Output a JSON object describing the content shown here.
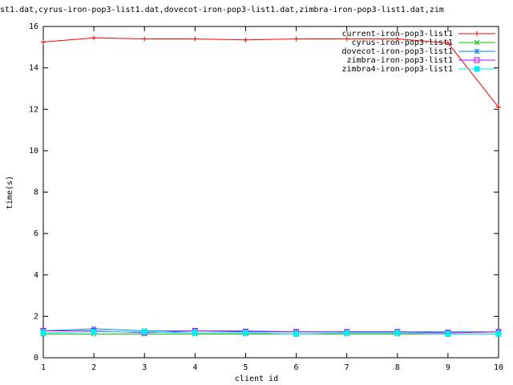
{
  "chart_data": {
    "type": "line",
    "title": "st1.dat,cyrus-iron-pop3-list1.dat,dovecot-iron-pop3-list1.dat,zimbra-iron-pop3-list1.dat,zim",
    "xlabel": "client id",
    "ylabel": "time(s)",
    "x": [
      1,
      2,
      3,
      4,
      5,
      6,
      7,
      8,
      9,
      10
    ],
    "xlim": [
      1,
      10
    ],
    "xticks": [
      1,
      2,
      3,
      4,
      5,
      6,
      7,
      8,
      9,
      10
    ],
    "ylim": [
      0,
      16
    ],
    "yticks": [
      0,
      2,
      4,
      6,
      8,
      10,
      12,
      14,
      16
    ],
    "legend": "top-right",
    "series": [
      {
        "name": "current-iron-pop3-list1",
        "color": "#ff0000",
        "values": [
          15.25,
          15.45,
          15.4,
          15.4,
          15.35,
          15.4,
          15.4,
          15.4,
          15.2,
          12.1
        ]
      },
      {
        "name": "cyrus-iron-pop3-list1",
        "color": "#00c000",
        "values": [
          1.15,
          1.15,
          1.15,
          1.15,
          1.15,
          1.15,
          1.15,
          1.15,
          1.15,
          1.15
        ]
      },
      {
        "name": "dovecot-iron-pop3-list1",
        "color": "#0080ff",
        "values": [
          1.3,
          1.4,
          1.3,
          1.3,
          1.3,
          1.25,
          1.25,
          1.25,
          1.25,
          1.25
        ]
      },
      {
        "name": "zimbra-iron-pop3-list1",
        "color": "#c000ff",
        "values": [
          1.3,
          1.3,
          1.2,
          1.3,
          1.25,
          1.25,
          1.25,
          1.25,
          1.2,
          1.25
        ]
      },
      {
        "name": "zimbra4-iron-pop3-list1",
        "color": "#00eeee",
        "values": [
          1.2,
          1.25,
          1.25,
          1.2,
          1.2,
          1.15,
          1.2,
          1.2,
          1.15,
          1.15
        ]
      }
    ]
  }
}
